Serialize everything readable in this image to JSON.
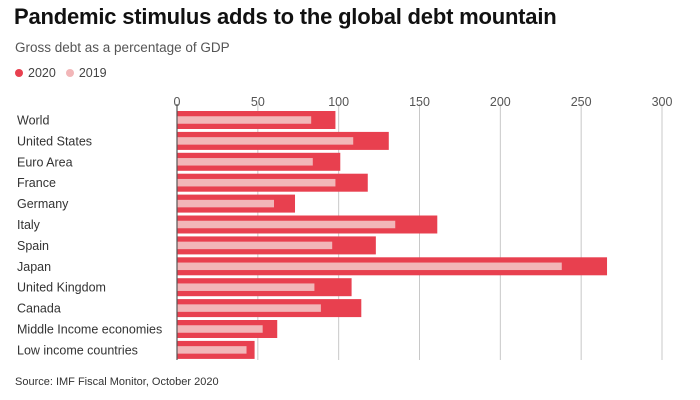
{
  "chart_data": {
    "type": "bar",
    "orientation": "horizontal",
    "title": "Pandemic stimulus adds to the global debt mountain",
    "subtitle": "Gross debt as a percentage of GDP",
    "categories": [
      "World",
      "United States",
      "Euro Area",
      "France",
      "Germany",
      "Italy",
      "Spain",
      "Japan",
      "United Kingdom",
      "Canada",
      "Middle Income economies",
      "Low income countries"
    ],
    "series": [
      {
        "name": "2020",
        "color": "#e8404f",
        "values": [
          98,
          131,
          101,
          118,
          73,
          161,
          123,
          266,
          108,
          114,
          62,
          48
        ]
      },
      {
        "name": "2019",
        "color": "#f2b6b8",
        "values": [
          83,
          109,
          84,
          98,
          60,
          135,
          96,
          238,
          85,
          89,
          53,
          43
        ]
      }
    ],
    "xlim": [
      0,
      300
    ],
    "xticks": [
      0,
      50,
      100,
      150,
      200,
      250,
      300
    ],
    "grid": true,
    "legend": "top-left",
    "source": "Source: IMF Fiscal Monitor, October 2020"
  }
}
